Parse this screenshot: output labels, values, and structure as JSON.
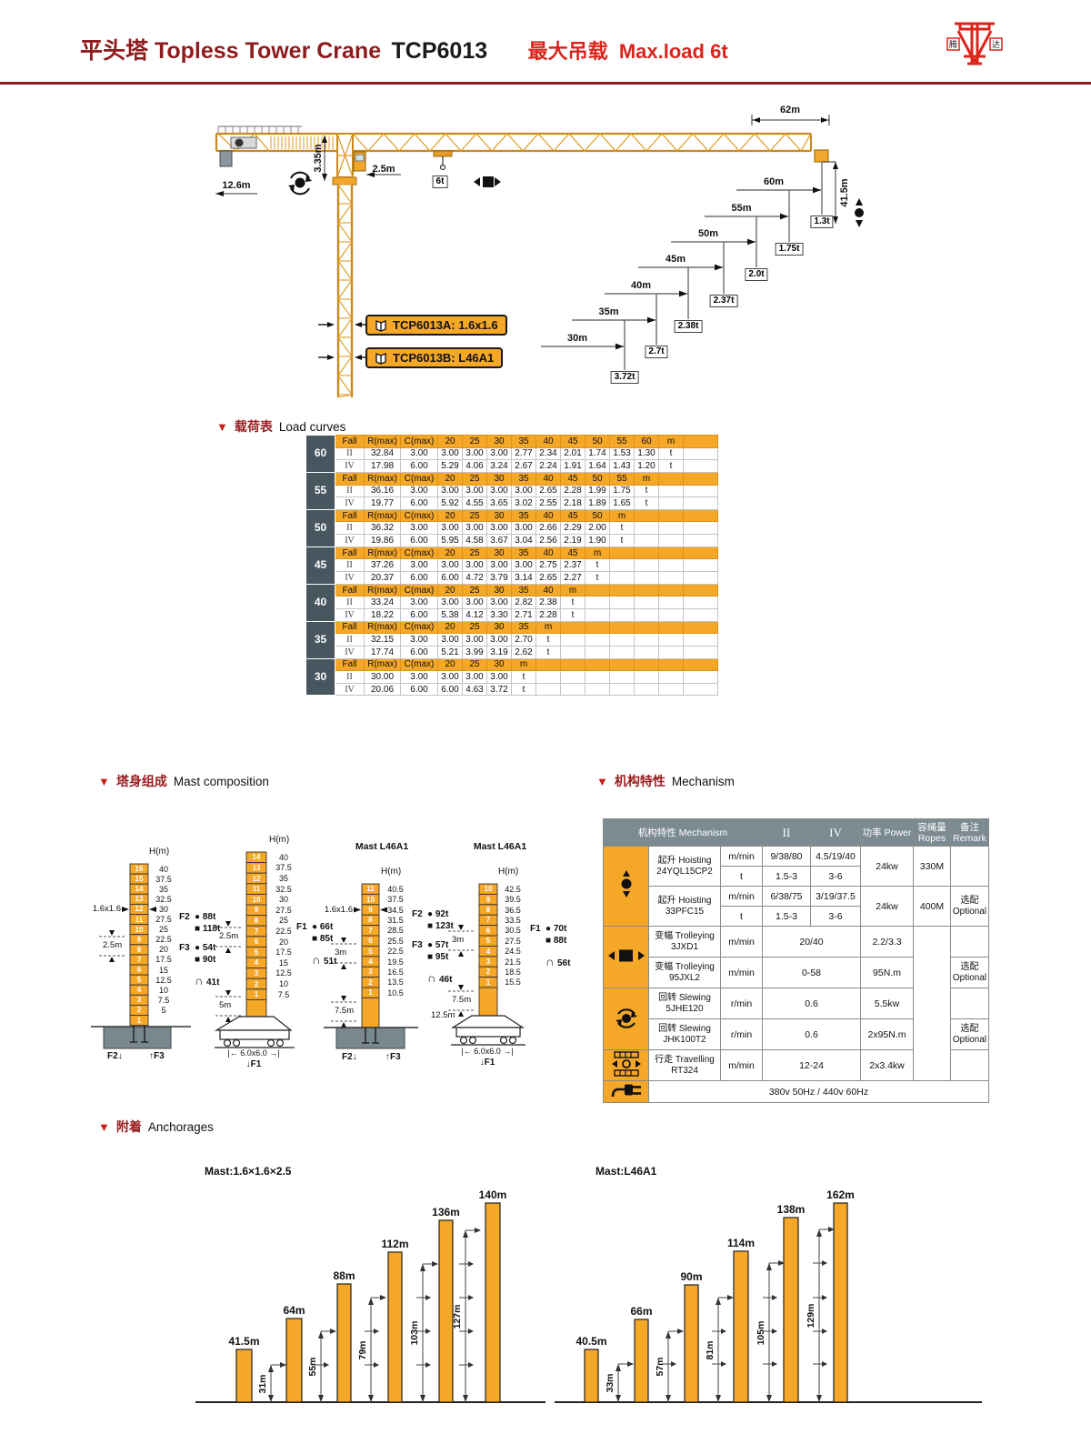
{
  "header": {
    "title_cn": "平头塔",
    "title_en": "Topless Tower Crane",
    "model": "TCP6013",
    "max_cn": "最大吊载",
    "max_en": "Max.load 6t",
    "logo_left": "腾",
    "logo_right": "达"
  },
  "crane": {
    "dims": {
      "jib": "62m",
      "tail": "12.6m",
      "head_h": "3.35m",
      "trolley": "2.5m",
      "load": "6t",
      "hook_h": "41.5m"
    },
    "models": [
      "TCP6013A: 1.6x1.6",
      "TCP6013B: L46A1"
    ],
    "steps": [
      {
        "radius": "60m",
        "load": "1.3t"
      },
      {
        "radius": "55m",
        "load": "1.75t"
      },
      {
        "radius": "50m",
        "load": "2.0t"
      },
      {
        "radius": "45m",
        "load": "2.37t"
      },
      {
        "radius": "40m",
        "load": "2.38t"
      },
      {
        "radius": "35m",
        "load": "2.7t"
      },
      {
        "radius": "30m",
        "load": "3.72t"
      }
    ]
  },
  "sections": {
    "load": {
      "cn": "载荷表",
      "en": "Load curves"
    },
    "mast": {
      "cn": "塔身组成",
      "en": "Mast composition"
    },
    "mech": {
      "cn": "机构特性",
      "en": "Mechanism"
    },
    "anchor": {
      "cn": "附着",
      "en": "Anchorages"
    }
  },
  "load_curves": {
    "headers": {
      "fall": "Fall",
      "rmax": "R(max)",
      "cmax": "C(max)",
      "m": "m",
      "t": "t"
    },
    "groups": [
      {
        "jib": "60",
        "radii": [
          "20",
          "25",
          "30",
          "35",
          "40",
          "45",
          "50",
          "55",
          "60"
        ],
        "rows": [
          {
            "fall": "II",
            "rmax": "32.84",
            "cmax": "3.00",
            "vals": [
              "3.00",
              "3.00",
              "3.00",
              "2.77",
              "2.34",
              "2.01",
              "1.74",
              "1.53",
              "1.30"
            ]
          },
          {
            "fall": "IV",
            "rmax": "17.98",
            "cmax": "6.00",
            "vals": [
              "5.29",
              "4.06",
              "3.24",
              "2.67",
              "2.24",
              "1.91",
              "1.64",
              "1.43",
              "1.20"
            ]
          }
        ]
      },
      {
        "jib": "55",
        "radii": [
          "20",
          "25",
          "30",
          "35",
          "40",
          "45",
          "50",
          "55"
        ],
        "rows": [
          {
            "fall": "II",
            "rmax": "36.16",
            "cmax": "3.00",
            "vals": [
              "3.00",
              "3.00",
              "3.00",
              "3.00",
              "2.65",
              "2.28",
              "1.99",
              "1.75"
            ]
          },
          {
            "fall": "IV",
            "rmax": "19.77",
            "cmax": "6.00",
            "vals": [
              "5.92",
              "4.55",
              "3.65",
              "3.02",
              "2.55",
              "2.18",
              "1.89",
              "1.65"
            ]
          }
        ]
      },
      {
        "jib": "50",
        "radii": [
          "20",
          "25",
          "30",
          "35",
          "40",
          "45",
          "50"
        ],
        "rows": [
          {
            "fall": "II",
            "rmax": "36.32",
            "cmax": "3.00",
            "vals": [
              "3.00",
              "3.00",
              "3.00",
              "3.00",
              "2.66",
              "2.29",
              "2.00"
            ]
          },
          {
            "fall": "IV",
            "rmax": "19.86",
            "cmax": "6.00",
            "vals": [
              "5.95",
              "4.58",
              "3.67",
              "3.04",
              "2.56",
              "2.19",
              "1.90"
            ]
          }
        ]
      },
      {
        "jib": "45",
        "radii": [
          "20",
          "25",
          "30",
          "35",
          "40",
          "45"
        ],
        "rows": [
          {
            "fall": "II",
            "rmax": "37.26",
            "cmax": "3.00",
            "vals": [
              "3.00",
              "3.00",
              "3.00",
              "3.00",
              "2.75",
              "2.37"
            ]
          },
          {
            "fall": "IV",
            "rmax": "20.37",
            "cmax": "6.00",
            "vals": [
              "6.00",
              "4.72",
              "3.79",
              "3.14",
              "2.65",
              "2.27"
            ]
          }
        ]
      },
      {
        "jib": "40",
        "radii": [
          "20",
          "25",
          "30",
          "35",
          "40"
        ],
        "rows": [
          {
            "fall": "II",
            "rmax": "33.24",
            "cmax": "3.00",
            "vals": [
              "3.00",
              "3.00",
              "3.00",
              "2.82",
              "2.38"
            ]
          },
          {
            "fall": "IV",
            "rmax": "18.22",
            "cmax": "6.00",
            "vals": [
              "5.38",
              "4.12",
              "3.30",
              "2.71",
              "2.28"
            ]
          }
        ]
      },
      {
        "jib": "35",
        "radii": [
          "20",
          "25",
          "30",
          "35"
        ],
        "rows": [
          {
            "fall": "II",
            "rmax": "32.15",
            "cmax": "3.00",
            "vals": [
              "3.00",
              "3.00",
              "3.00",
              "2.70"
            ]
          },
          {
            "fall": "IV",
            "rmax": "17.74",
            "cmax": "6.00",
            "vals": [
              "5.21",
              "3.99",
              "3.19",
              "2.62"
            ]
          }
        ]
      },
      {
        "jib": "30",
        "radii": [
          "20",
          "25",
          "30"
        ],
        "rows": [
          {
            "fall": "II",
            "rmax": "30.00",
            "cmax": "3.00",
            "vals": [
              "3.00",
              "3.00",
              "3.00"
            ]
          },
          {
            "fall": "IV",
            "rmax": "20.06",
            "cmax": "6.00",
            "vals": [
              "6.00",
              "4.63",
              "3.72"
            ]
          }
        ]
      }
    ]
  },
  "mast": {
    "hm": "H(m)",
    "towers": [
      {
        "title": "",
        "sections": [
          [
            "16",
            "40"
          ],
          [
            "15",
            "37.5"
          ],
          [
            "14",
            "35"
          ],
          [
            "13",
            "32.5"
          ],
          [
            "12",
            "30"
          ],
          [
            "11",
            "27.5"
          ],
          [
            "10",
            "25"
          ],
          [
            "9",
            "22.5"
          ],
          [
            "8",
            "20"
          ],
          [
            "7",
            "17.5"
          ],
          [
            "6",
            "15"
          ],
          [
            "5",
            "12.5"
          ],
          [
            "4",
            "10"
          ],
          [
            "3",
            "7.5"
          ],
          [
            "2",
            "5"
          ],
          [
            "1",
            ""
          ]
        ],
        "size_label": "1.6x1.6",
        "dim_labels": [
          "2.5m"
        ],
        "legend": [
          {
            "f": "F2",
            "sym": "●",
            "val": "88t"
          },
          {
            "f": "",
            "sym": "■",
            "val": "118t",
            "gap": false
          },
          {
            "f": "F3",
            "sym": "●",
            "val": "54t",
            "gap": true
          },
          {
            "f": "",
            "sym": "■",
            "val": "90t"
          },
          {
            "f": "",
            "sym": "∩",
            "val": "41t",
            "gap": true,
            "arch": true
          }
        ],
        "base_left": "F2↓",
        "base_right": "↑F3"
      },
      {
        "title": "",
        "sections": [
          [
            "14",
            "40"
          ],
          [
            "13",
            "37.5"
          ],
          [
            "12",
            "35"
          ],
          [
            "11",
            "32.5"
          ],
          [
            "10",
            "30"
          ],
          [
            "9",
            "27.5"
          ],
          [
            "8",
            "25"
          ],
          [
            "7",
            "22.5"
          ],
          [
            "6",
            "20"
          ],
          [
            "5",
            "17.5"
          ],
          [
            "4",
            "15"
          ],
          [
            "3",
            "12.5"
          ],
          [
            "2",
            "10"
          ],
          [
            "1",
            "7.5"
          ]
        ],
        "size_label": "",
        "dim_labels": [
          "2.5m",
          "5m"
        ],
        "legend": [
          {
            "f": "F1",
            "sym": "●",
            "val": "66t"
          },
          {
            "f": "",
            "sym": "■",
            "val": "85t"
          },
          {
            "f": "",
            "sym": "∩",
            "val": "51t",
            "gap": true,
            "arch": true
          }
        ],
        "footprint": "|← 6.0x6.0 →|",
        "below": "↓F1"
      },
      {
        "title": "Mast L46A1",
        "sections": [
          [
            "11",
            "40.5"
          ],
          [
            "10",
            "37.5"
          ],
          [
            "9",
            "34.5"
          ],
          [
            "8",
            "31.5"
          ],
          [
            "7",
            "28.5"
          ],
          [
            "6",
            "25.5"
          ],
          [
            "5",
            "22.5"
          ],
          [
            "4",
            "19.5"
          ],
          [
            "3",
            "16.5"
          ],
          [
            "2",
            "13.5"
          ],
          [
            "1",
            "10.5"
          ]
        ],
        "size_label": "1.6x1.6",
        "dim_labels": [
          "3m",
          "7.5m"
        ],
        "legend": [
          {
            "f": "F2",
            "sym": "●",
            "val": "92t"
          },
          {
            "f": "",
            "sym": "■",
            "val": "123t"
          },
          {
            "f": "F3",
            "sym": "●",
            "val": "57t",
            "gap": true
          },
          {
            "f": "",
            "sym": "■",
            "val": "95t"
          },
          {
            "f": "",
            "sym": "∩",
            "val": "46t",
            "gap": true,
            "arch": true
          }
        ],
        "base_left": "F2↓",
        "base_right": "↑F3"
      },
      {
        "title": "Mast L46A1",
        "sections": [
          [
            "10",
            "42.5"
          ],
          [
            "9",
            "39.5"
          ],
          [
            "8",
            "36.5"
          ],
          [
            "7",
            "33.5"
          ],
          [
            "6",
            "30.5"
          ],
          [
            "5",
            "27.5"
          ],
          [
            "4",
            "24.5"
          ],
          [
            "3",
            "21.5"
          ],
          [
            "2",
            "18.5"
          ],
          [
            "1",
            "15.5"
          ]
        ],
        "size_label": "",
        "dim_labels": [
          "3m",
          "7.5m",
          "12.5m"
        ],
        "legend": [
          {
            "f": "F1",
            "sym": "●",
            "val": "70t"
          },
          {
            "f": "",
            "sym": "■",
            "val": "88t"
          },
          {
            "f": "",
            "sym": "∩",
            "val": "56t",
            "gap": true,
            "arch": true
          }
        ],
        "footprint": "|← 6.0x6.0 →|",
        "below": "↓F1"
      }
    ]
  },
  "mechanism": {
    "headers": {
      "name": "机构特性 Mechanism",
      "ii": "II",
      "iv": "IV",
      "power": "功率 Power",
      "ropes_cn": "容绳量",
      "ropes_en": "Ropes",
      "remark_cn": "备注",
      "remark_en": "Remark"
    },
    "optional": "选配 Optional",
    "power_supply": "380v 50Hz / 440v 60Hz",
    "hoisting": [
      {
        "name_cn": "起升 Hoisting",
        "model": "24YQL15CP2",
        "sub": [
          {
            "unit": "m/min",
            "ii": "9/38/80",
            "iv": "4.5/19/40"
          },
          {
            "unit": "t",
            "ii": "1.5-3",
            "iv": "3-6"
          }
        ],
        "power": "24kw",
        "ropes": "330M",
        "optional": false
      },
      {
        "name_cn": "起升 Hoisting",
        "model": "33PFC15",
        "sub": [
          {
            "unit": "m/min",
            "ii": "6/38/75",
            "iv": "3/19/37.5"
          },
          {
            "unit": "t",
            "ii": "1.5-3",
            "iv": "3-6"
          }
        ],
        "power": "24kw",
        "ropes": "400M",
        "optional": true
      }
    ],
    "others": [
      {
        "icon": "trolley",
        "name_cn": "变幅 Trolleying",
        "model": "3JXD1",
        "unit": "m/min",
        "val": "20/40",
        "power": "2.2/3.3",
        "optional": false
      },
      {
        "icon": "trolley",
        "name_cn": "变幅 Trolleying",
        "model": "95JXL2",
        "unit": "m/min",
        "val": "0-58",
        "power": "95N.m",
        "optional": true
      },
      {
        "icon": "slew",
        "name_cn": "回转 Slewing",
        "model": "5JHE120",
        "unit": "r/min",
        "val": "0.6",
        "power": "5.5kw",
        "optional": false
      },
      {
        "icon": "slew",
        "name_cn": "回转 Slewing",
        "model": "JHK100T2",
        "unit": "r/min",
        "val": "0.6",
        "power": "2x95N.m",
        "optional": true
      },
      {
        "icon": "travel",
        "name_cn": "行走 Travelling",
        "model": "RT324",
        "unit": "m/min",
        "val": "12-24",
        "power": "2x3.4kw",
        "optional": false
      }
    ]
  },
  "anchorages": {
    "charts": [
      {
        "title": "Mast:1.6×1.6×2.5",
        "bars": [
          "41.5m",
          "64m",
          "88m",
          "112m",
          "136m",
          "140m"
        ],
        "dims": [
          "31m",
          "55m",
          "79m",
          "103m",
          "127m"
        ]
      },
      {
        "title": "Mast:L46A1",
        "bars": [
          "40.5m",
          "66m",
          "90m",
          "114m",
          "138m",
          "162m"
        ],
        "dims": [
          "33m",
          "57m",
          "81m",
          "105m",
          "129m"
        ]
      }
    ]
  }
}
